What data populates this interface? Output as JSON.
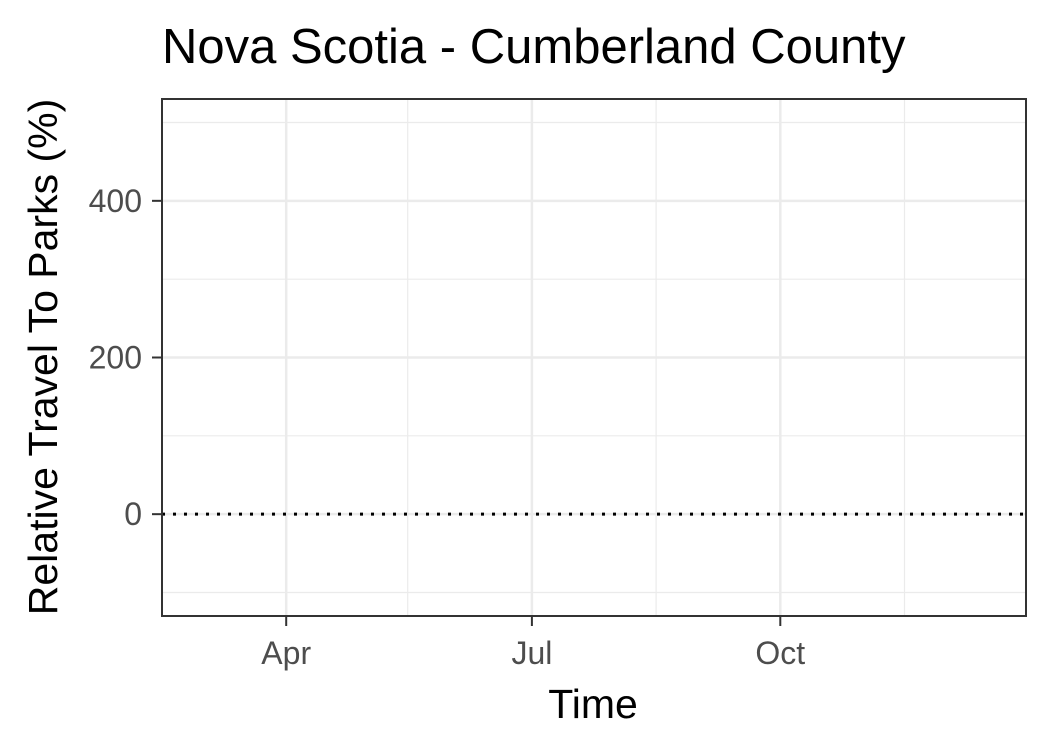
{
  "chart_data": {
    "type": "line",
    "title": "Nova Scotia - Cumberland County",
    "xlabel": "Time",
    "ylabel": "Relative Travel To Parks (%)",
    "x_ticks": [
      "Apr",
      "Jul",
      "Oct"
    ],
    "x_tick_dates": [
      "2020-04-01",
      "2020-07-01",
      "2020-10-01"
    ],
    "xlim": [
      "2020-02-15",
      "2020-12-31"
    ],
    "x_minor_dates": [
      "2020-02-15",
      "2020-05-16",
      "2020-08-16",
      "2020-11-16"
    ],
    "y_ticks": [
      0,
      200,
      400
    ],
    "y_minor": [
      -100,
      100,
      300,
      500
    ],
    "ylim": [
      -130,
      530
    ],
    "reference_line": {
      "y": 0,
      "style": "dotted",
      "color": "#000000"
    },
    "series": [],
    "grid": true,
    "legend": "none",
    "colors": {
      "panel_border": "#333333",
      "grid": "#ebebeb",
      "tick_label": "#4d4d4d"
    }
  }
}
